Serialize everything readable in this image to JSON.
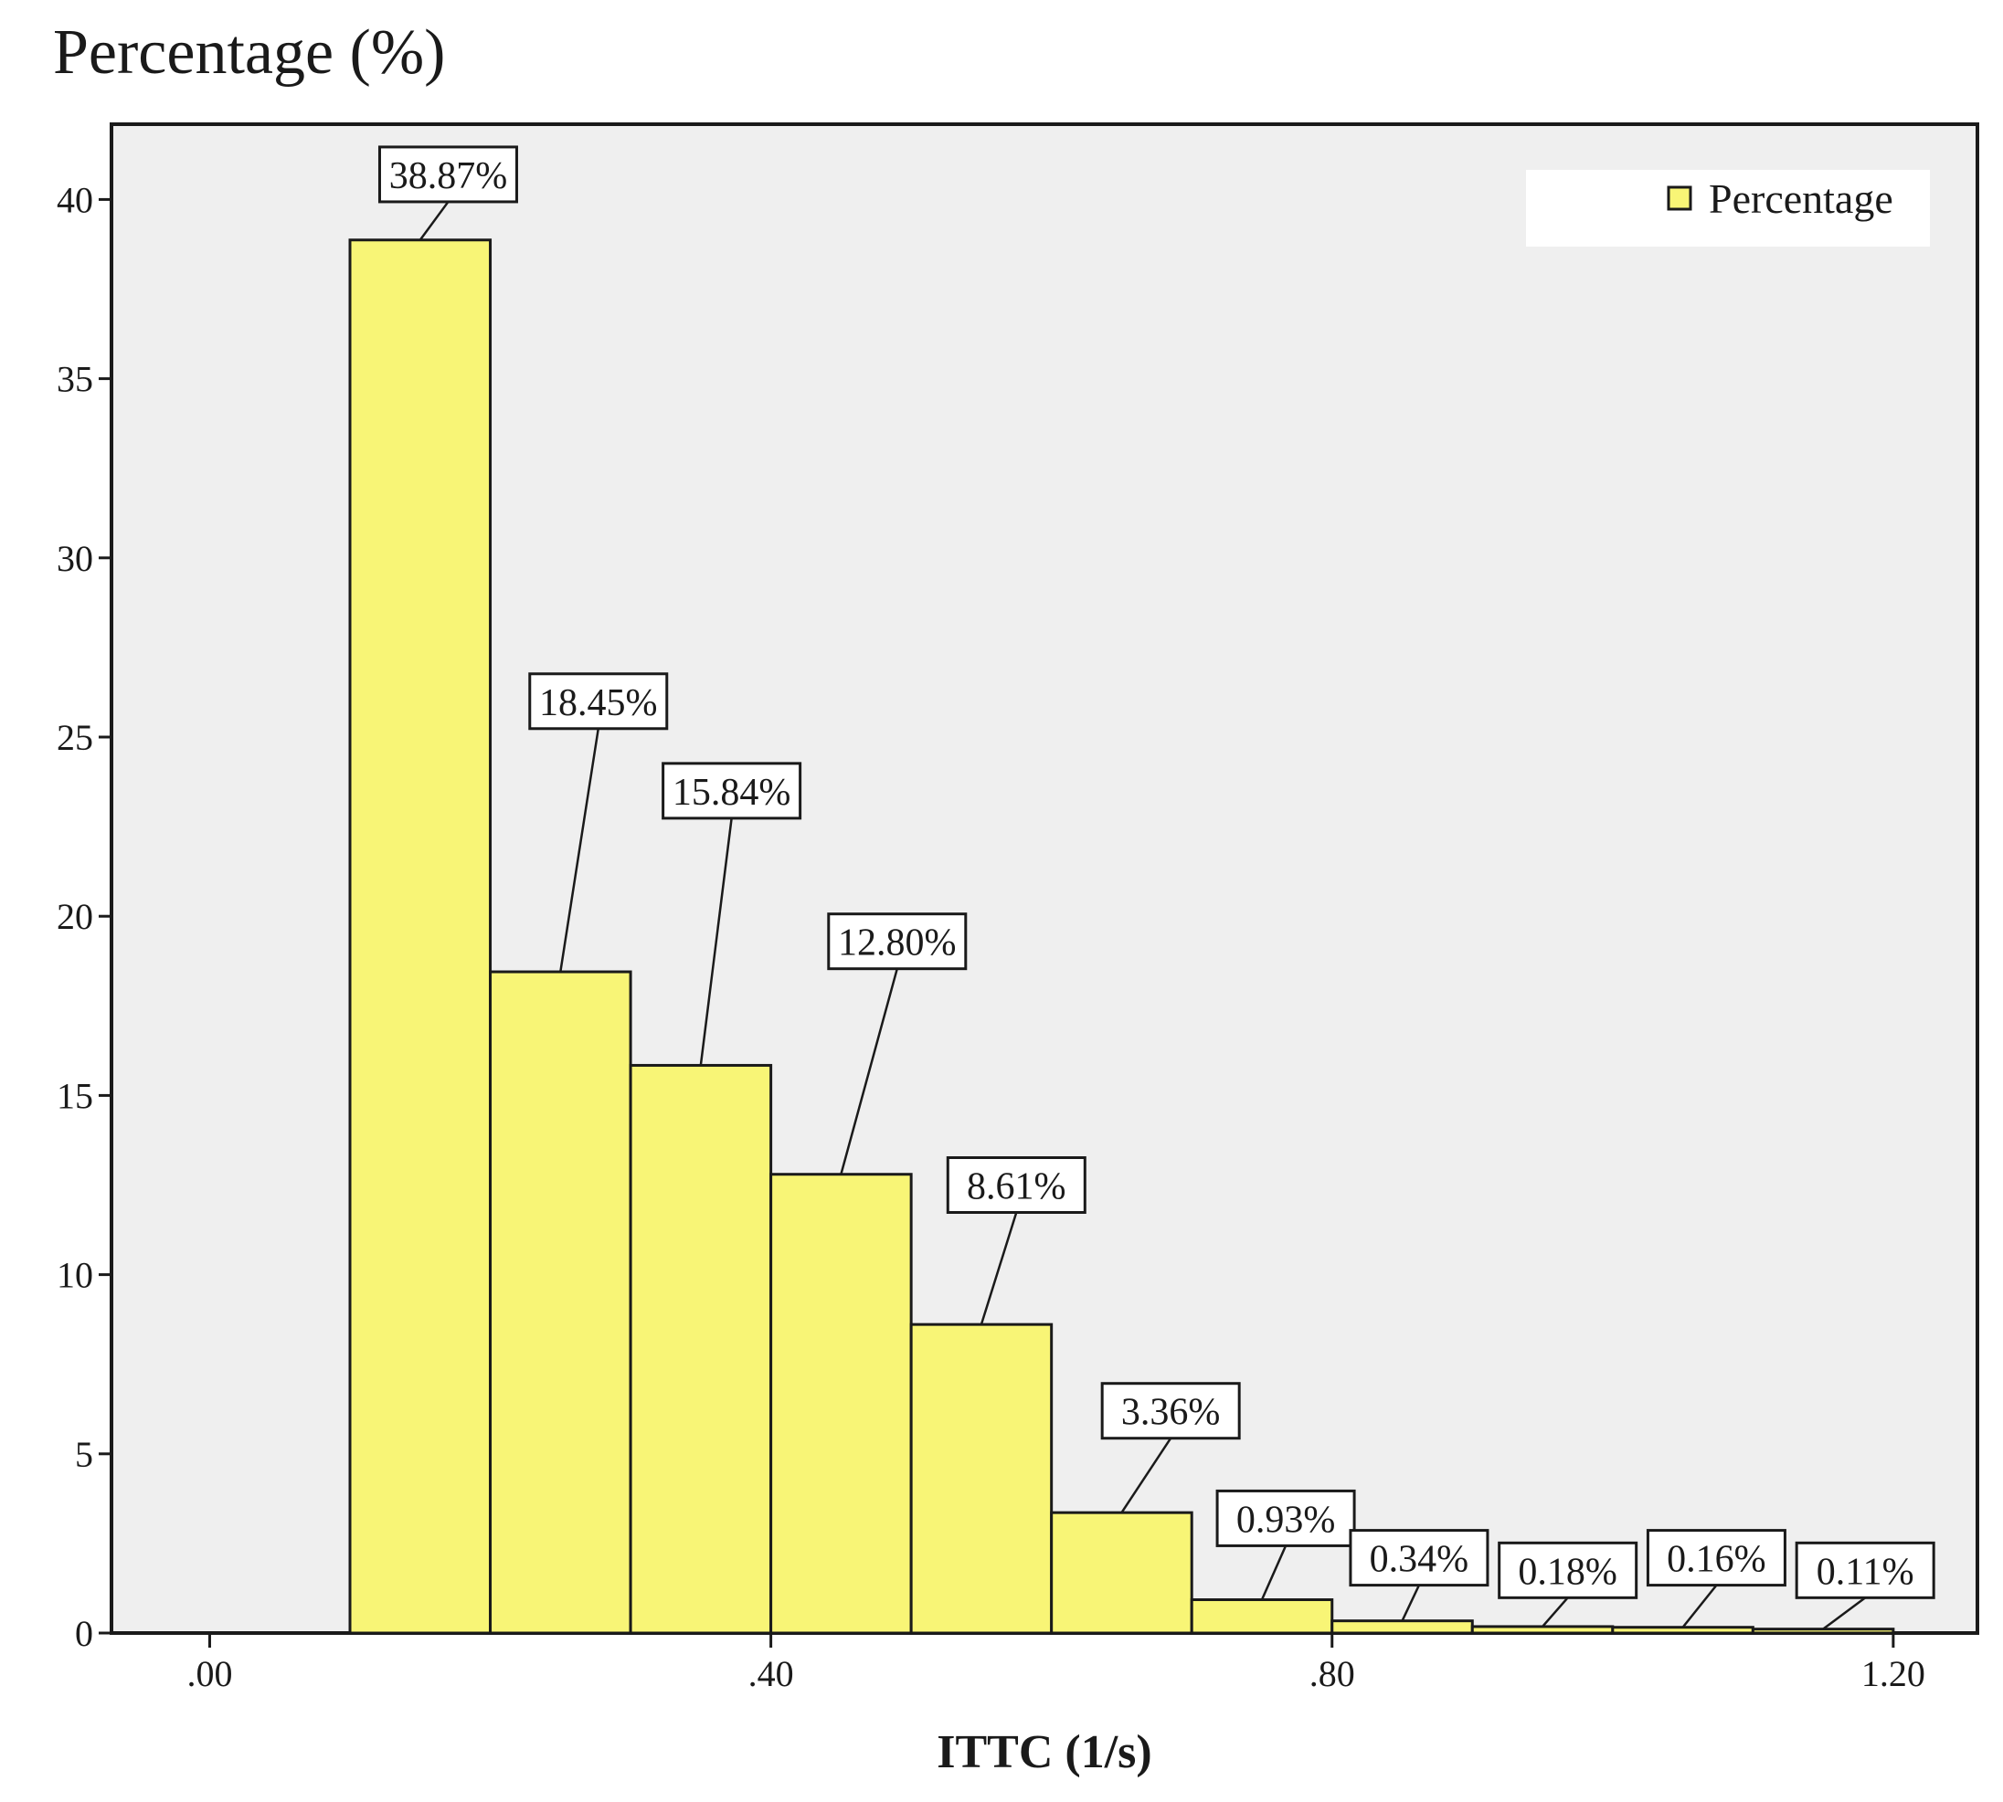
{
  "chart_data": {
    "type": "bar",
    "title": "Percentage (%)",
    "xlabel": "ITTC  (1/s)",
    "ylabel": "Percentage (%)",
    "xlim": [
      -0.07,
      1.26
    ],
    "ylim": [
      0,
      42.1
    ],
    "x_ticks": [
      {
        "value": 0.0,
        "label": ".00"
      },
      {
        "value": 0.4,
        "label": ".40"
      },
      {
        "value": 0.8,
        "label": ".80"
      },
      {
        "value": 1.2,
        "label": "1.20"
      }
    ],
    "y_ticks": [
      {
        "value": 0,
        "label": "0"
      },
      {
        "value": 5,
        "label": "5"
      },
      {
        "value": 10,
        "label": "10"
      },
      {
        "value": 15,
        "label": "15"
      },
      {
        "value": 20,
        "label": "20"
      },
      {
        "value": 25,
        "label": "25"
      },
      {
        "value": 30,
        "label": "30"
      },
      {
        "value": 35,
        "label": "35"
      },
      {
        "value": 40,
        "label": "40"
      }
    ],
    "bin_edges": [
      0.1,
      0.2,
      0.3,
      0.4,
      0.5,
      0.6,
      0.7,
      0.8,
      0.9,
      1.0,
      1.1,
      1.2
    ],
    "values": [
      38.87,
      18.45,
      15.84,
      12.8,
      8.61,
      3.36,
      0.93,
      0.34,
      0.18,
      0.16,
      0.11
    ],
    "data_labels": [
      "38.87%",
      "18.45%",
      "15.84%",
      "12.80%",
      "8.61%",
      "3.36%",
      "0.93%",
      "0.34%",
      "0.18%",
      "0.16%",
      "0.11%"
    ],
    "label_anchors": [
      {
        "x": 0.17,
        "y": 40.7
      },
      {
        "x": 0.277,
        "y": 26.0
      },
      {
        "x": 0.372,
        "y": 23.5
      },
      {
        "x": 0.49,
        "y": 19.3
      },
      {
        "x": 0.575,
        "y": 12.5
      },
      {
        "x": 0.685,
        "y": 6.2
      },
      {
        "x": 0.767,
        "y": 3.2
      },
      {
        "x": 0.862,
        "y": 2.1
      },
      {
        "x": 0.968,
        "y": 1.75
      },
      {
        "x": 1.074,
        "y": 2.1
      },
      {
        "x": 1.18,
        "y": 1.75
      }
    ],
    "series": [
      {
        "name": "Percentage",
        "color": "#f8f576"
      }
    ],
    "legend": {
      "label": "Percentage",
      "position": "top-right"
    },
    "grid": false,
    "colors": {
      "bar": "#f8f576",
      "plot_bg": "#efefef",
      "edge": "#1a1a1a",
      "legend_bg": "#ffffff"
    }
  }
}
